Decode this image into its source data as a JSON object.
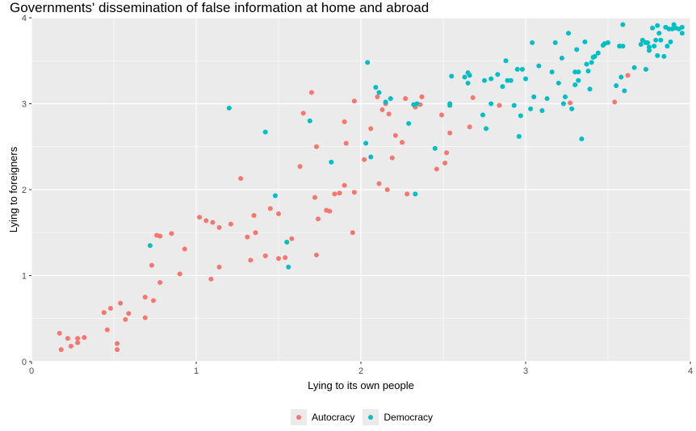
{
  "chart_data": {
    "type": "scatter",
    "title": "Governments' dissemination of false information at home and abroad",
    "xlabel": "Lying to its own people",
    "ylabel": "Lying to foreigners",
    "xlim": [
      0,
      4
    ],
    "ylim": [
      0,
      4
    ],
    "xticks": [
      "0",
      "1",
      "2",
      "3",
      "4"
    ],
    "yticks": [
      "0",
      "1",
      "2",
      "3",
      "4"
    ],
    "grid": true,
    "legend_position": "bottom",
    "series": [
      {
        "name": "Autocracy",
        "color": "#F8766D",
        "points": [
          [
            0.17,
            0.33
          ],
          [
            0.18,
            0.14
          ],
          [
            0.22,
            0.27
          ],
          [
            0.24,
            0.18
          ],
          [
            0.28,
            0.22
          ],
          [
            0.28,
            0.27
          ],
          [
            0.32,
            0.28
          ],
          [
            0.44,
            0.57
          ],
          [
            0.46,
            0.37
          ],
          [
            0.48,
            0.62
          ],
          [
            0.52,
            0.14
          ],
          [
            0.52,
            0.21
          ],
          [
            0.54,
            0.68
          ],
          [
            0.57,
            0.49
          ],
          [
            0.59,
            0.56
          ],
          [
            0.69,
            0.75
          ],
          [
            0.69,
            0.51
          ],
          [
            0.73,
            1.12
          ],
          [
            0.74,
            0.71
          ],
          [
            0.76,
            1.47
          ],
          [
            0.78,
            1.46
          ],
          [
            0.78,
            0.92
          ],
          [
            0.85,
            1.49
          ],
          [
            0.9,
            1.02
          ],
          [
            0.93,
            1.31
          ],
          [
            1.02,
            1.68
          ],
          [
            1.06,
            1.64
          ],
          [
            1.09,
            0.96
          ],
          [
            1.1,
            1.62
          ],
          [
            1.14,
            1.56
          ],
          [
            1.14,
            1.1
          ],
          [
            1.21,
            1.6
          ],
          [
            1.27,
            2.13
          ],
          [
            1.31,
            1.45
          ],
          [
            1.33,
            1.18
          ],
          [
            1.35,
            1.7
          ],
          [
            1.36,
            1.5
          ],
          [
            1.42,
            1.23
          ],
          [
            1.45,
            1.78
          ],
          [
            1.5,
            1.72
          ],
          [
            1.5,
            1.2
          ],
          [
            1.54,
            1.21
          ],
          [
            1.58,
            1.43
          ],
          [
            1.63,
            2.27
          ],
          [
            1.65,
            2.89
          ],
          [
            1.7,
            3.13
          ],
          [
            1.72,
            1.91
          ],
          [
            1.73,
            1.24
          ],
          [
            1.73,
            2.5
          ],
          [
            1.74,
            1.66
          ],
          [
            1.79,
            1.76
          ],
          [
            1.81,
            1.75
          ],
          [
            1.84,
            1.95
          ],
          [
            1.87,
            1.96
          ],
          [
            1.9,
            2.05
          ],
          [
            1.9,
            2.79
          ],
          [
            1.91,
            2.54
          ],
          [
            1.95,
            1.5
          ],
          [
            1.96,
            1.97
          ],
          [
            1.96,
            3.03
          ],
          [
            2.02,
            2.35
          ],
          [
            2.06,
            2.71
          ],
          [
            2.1,
            3.08
          ],
          [
            2.11,
            2.07
          ],
          [
            2.13,
            2.93
          ],
          [
            2.15,
            3.0
          ],
          [
            2.16,
            2.0
          ],
          [
            2.17,
            2.88
          ],
          [
            2.19,
            2.37
          ],
          [
            2.21,
            2.63
          ],
          [
            2.25,
            2.55
          ],
          [
            2.27,
            3.06
          ],
          [
            2.28,
            1.95
          ],
          [
            2.33,
            2.96
          ],
          [
            2.36,
            2.99
          ],
          [
            2.37,
            3.08
          ],
          [
            2.46,
            2.24
          ],
          [
            2.49,
            2.87
          ],
          [
            2.51,
            2.31
          ],
          [
            2.52,
            2.43
          ],
          [
            2.54,
            2.66
          ],
          [
            2.66,
            2.73
          ],
          [
            2.68,
            3.07
          ],
          [
            2.84,
            2.98
          ],
          [
            3.27,
            3.01
          ],
          [
            3.54,
            3.02
          ],
          [
            3.62,
            3.33
          ]
        ]
      },
      {
        "name": "Democracy",
        "color": "#00BFC4",
        "points": [
          [
            0.72,
            1.35
          ],
          [
            1.2,
            2.95
          ],
          [
            1.42,
            2.67
          ],
          [
            1.48,
            1.93
          ],
          [
            1.55,
            1.39
          ],
          [
            1.56,
            1.1
          ],
          [
            1.69,
            2.8
          ],
          [
            1.82,
            2.32
          ],
          [
            2.03,
            2.54
          ],
          [
            2.04,
            3.48
          ],
          [
            2.06,
            2.38
          ],
          [
            2.09,
            3.19
          ],
          [
            2.11,
            3.13
          ],
          [
            2.15,
            3.02
          ],
          [
            2.18,
            3.06
          ],
          [
            2.29,
            2.77
          ],
          [
            2.32,
            2.99
          ],
          [
            2.33,
            1.95
          ],
          [
            2.34,
            3.0
          ],
          [
            2.45,
            2.48
          ],
          [
            2.54,
            3.0
          ],
          [
            2.54,
            2.98
          ],
          [
            2.55,
            3.32
          ],
          [
            2.63,
            3.31
          ],
          [
            2.65,
            3.24
          ],
          [
            2.65,
            3.36
          ],
          [
            2.66,
            3.33
          ],
          [
            2.74,
            2.87
          ],
          [
            2.75,
            3.27
          ],
          [
            2.76,
            2.71
          ],
          [
            2.79,
            3.0
          ],
          [
            2.79,
            3.29
          ],
          [
            2.83,
            3.34
          ],
          [
            2.86,
            3.2
          ],
          [
            2.88,
            3.5
          ],
          [
            2.89,
            3.27
          ],
          [
            2.91,
            3.27
          ],
          [
            2.93,
            2.98
          ],
          [
            2.95,
            3.4
          ],
          [
            2.96,
            2.62
          ],
          [
            2.97,
            2.86
          ],
          [
            2.98,
            3.4
          ],
          [
            3.0,
            3.29
          ],
          [
            3.03,
            2.94
          ],
          [
            3.04,
            3.71
          ],
          [
            3.05,
            3.08
          ],
          [
            3.08,
            3.44
          ],
          [
            3.1,
            2.92
          ],
          [
            3.13,
            3.06
          ],
          [
            3.16,
            3.37
          ],
          [
            3.18,
            3.71
          ],
          [
            3.2,
            3.24
          ],
          [
            3.22,
            3.53
          ],
          [
            3.23,
            3.0
          ],
          [
            3.24,
            3.08
          ],
          [
            3.26,
            3.82
          ],
          [
            3.28,
            2.94
          ],
          [
            3.3,
            3.22
          ],
          [
            3.3,
            3.37
          ],
          [
            3.31,
            3.63
          ],
          [
            3.32,
            3.37
          ],
          [
            3.32,
            3.27
          ],
          [
            3.34,
            2.59
          ],
          [
            3.36,
            3.72
          ],
          [
            3.37,
            3.46
          ],
          [
            3.38,
            3.38
          ],
          [
            3.39,
            3.17
          ],
          [
            3.4,
            3.48
          ],
          [
            3.41,
            3.54
          ],
          [
            3.42,
            3.55
          ],
          [
            3.44,
            3.59
          ],
          [
            3.47,
            3.68
          ],
          [
            3.48,
            3.7
          ],
          [
            3.5,
            3.71
          ],
          [
            3.55,
            3.21
          ],
          [
            3.57,
            3.67
          ],
          [
            3.57,
            3.67
          ],
          [
            3.58,
            3.31
          ],
          [
            3.59,
            3.67
          ],
          [
            3.59,
            3.92
          ],
          [
            3.6,
            3.15
          ],
          [
            3.66,
            3.42
          ],
          [
            3.7,
            3.69
          ],
          [
            3.71,
            3.74
          ],
          [
            3.73,
            3.71
          ],
          [
            3.73,
            3.4
          ],
          [
            3.74,
            3.71
          ],
          [
            3.75,
            3.62
          ],
          [
            3.75,
            3.66
          ],
          [
            3.77,
            3.88
          ],
          [
            3.78,
            3.67
          ],
          [
            3.79,
            3.74
          ],
          [
            3.8,
            3.56
          ],
          [
            3.8,
            3.91
          ],
          [
            3.81,
            3.82
          ],
          [
            3.82,
            3.74
          ],
          [
            3.84,
            3.55
          ],
          [
            3.85,
            3.89
          ],
          [
            3.86,
            3.67
          ],
          [
            3.87,
            3.87
          ],
          [
            3.88,
            3.72
          ],
          [
            3.89,
            3.87
          ],
          [
            3.9,
            3.92
          ],
          [
            3.91,
            3.88
          ],
          [
            3.93,
            3.87
          ],
          [
            3.95,
            3.82
          ],
          [
            3.95,
            3.89
          ]
        ]
      }
    ]
  }
}
